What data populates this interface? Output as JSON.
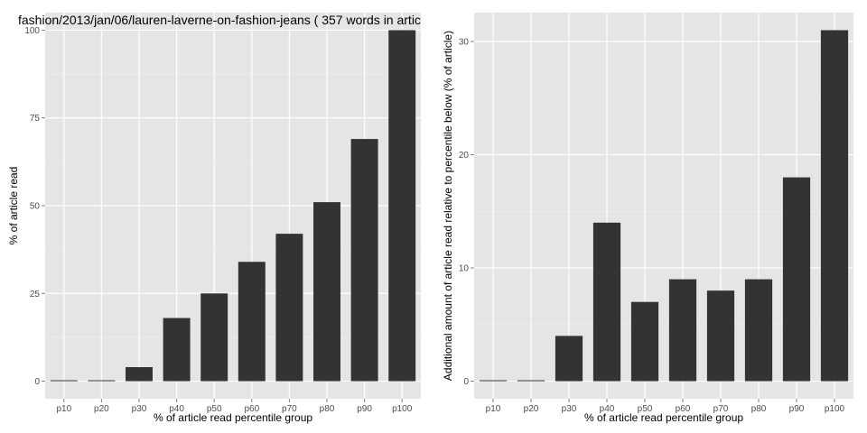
{
  "colors": {
    "panel_background": "#e5e5e5",
    "grid_major": "#ffffff",
    "grid_minor": "#f0f0f0",
    "bar_fill": "#333333",
    "tick_label": "#4d4d4d"
  },
  "chart_data": [
    {
      "type": "bar",
      "title": "fashion/2013/jan/06/lauren-laverne-on-fashion-jeans ( 357 words in artic",
      "xlabel": "% of article read percentile group",
      "ylabel": "% of article read",
      "categories": [
        "p10",
        "p20",
        "p30",
        "p40",
        "p50",
        "p60",
        "p70",
        "p80",
        "p90",
        "p100"
      ],
      "values": [
        0,
        0,
        4,
        18,
        25,
        34,
        42,
        51,
        69,
        100
      ],
      "yticks": [
        0,
        25,
        50,
        75,
        100
      ],
      "ylim": [
        -5,
        105
      ],
      "grid": true,
      "legend": false
    },
    {
      "type": "bar",
      "title": "",
      "xlabel": "% of article read percentile group",
      "ylabel": "Additional amount of article read relative to percentile below (% of article)",
      "categories": [
        "p10",
        "p20",
        "p30",
        "p40",
        "p50",
        "p60",
        "p70",
        "p80",
        "p90",
        "p100"
      ],
      "values": [
        0,
        0,
        4,
        14,
        7,
        9,
        8,
        9,
        18,
        31
      ],
      "yticks": [
        0,
        10,
        20,
        30
      ],
      "ylim": [
        -1.55,
        32.55
      ],
      "grid": true,
      "legend": false
    }
  ]
}
